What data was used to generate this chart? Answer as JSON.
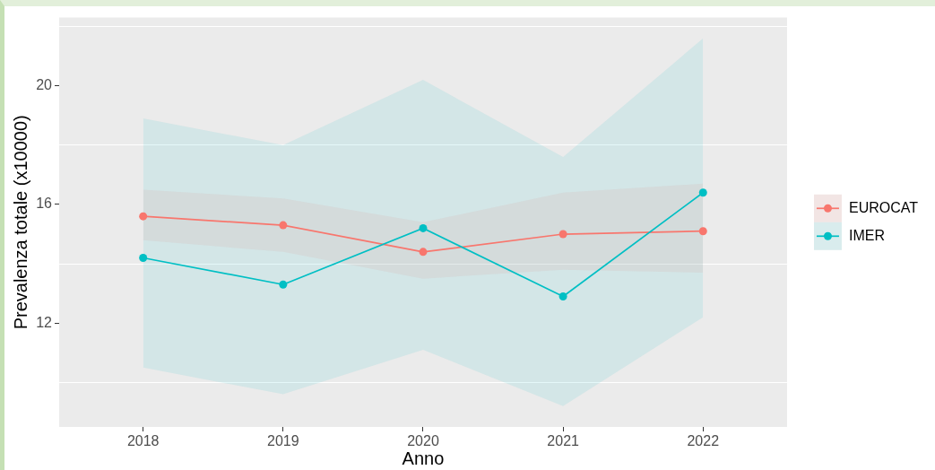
{
  "chart_data": {
    "type": "line",
    "xlabel": "Anno",
    "ylabel": "Prevalenza totale (x10000)",
    "x": [
      2018,
      2019,
      2020,
      2021,
      2022
    ],
    "xlim": [
      2017.4,
      2022.6
    ],
    "xticks": [
      2018,
      2019,
      2020,
      2021,
      2022
    ],
    "ylim": [
      8.5,
      22.3
    ],
    "yticks": [
      {
        "value": 10,
        "label": null
      },
      12,
      {
        "value": 14,
        "label": null
      },
      16,
      {
        "value": 18,
        "label": null
      },
      20,
      {
        "value": 22,
        "label": null
      }
    ],
    "series": [
      {
        "name": "EUROCAT",
        "color": "#f8766d",
        "values": [
          15.6,
          15.3,
          14.4,
          15.0,
          15.1
        ],
        "lower": [
          14.8,
          14.4,
          13.5,
          13.8,
          13.7
        ],
        "upper": [
          16.5,
          16.2,
          15.4,
          16.4,
          16.7
        ]
      },
      {
        "name": "IMER",
        "color": "#00bfc4",
        "values": [
          14.2,
          13.3,
          15.2,
          12.9,
          16.4
        ],
        "lower": [
          10.5,
          9.6,
          11.1,
          9.2,
          12.2
        ],
        "upper": [
          18.9,
          18.0,
          20.2,
          17.6,
          21.6
        ]
      }
    ],
    "grid": "y",
    "legend": "right",
    "marker": "circle",
    "line_style": "solid"
  }
}
